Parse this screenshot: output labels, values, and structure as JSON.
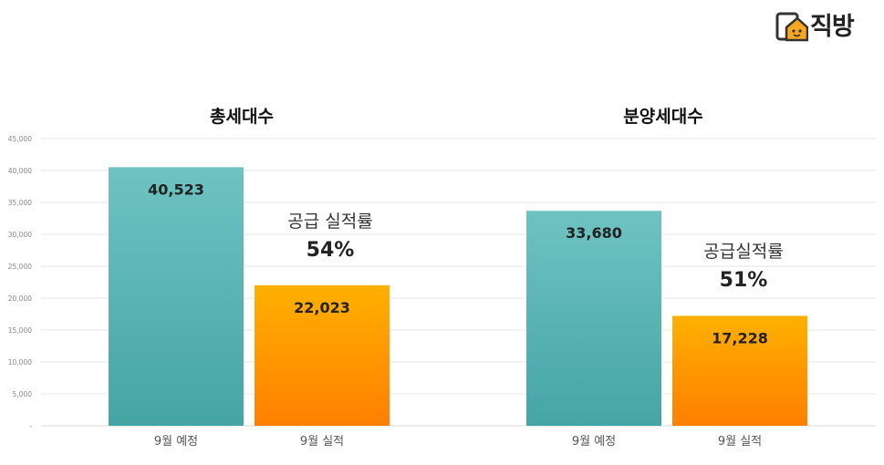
{
  "brand": {
    "name": "직방",
    "icon": "house-logo-icon",
    "accent": "#f7a823"
  },
  "chart_data": {
    "type": "bar",
    "ylim": [
      0,
      45000
    ],
    "yticks": [
      "-",
      "5,000",
      "10,000",
      "15,000",
      "20,000",
      "25,000",
      "30,000",
      "35,000",
      "40,000",
      "45,000"
    ],
    "grid": true,
    "colors": {
      "plan": "#4fb0b0",
      "actual": "#ff9500"
    },
    "panels": [
      {
        "title": "총세대수",
        "categories": [
          "9월 예정",
          "9월 실적"
        ],
        "values": [
          40523,
          22023
        ],
        "value_labels": [
          "40,523",
          "22,023"
        ],
        "annotation": {
          "label": "공급 실적률",
          "value": "54%"
        }
      },
      {
        "title": "분양세대수",
        "categories": [
          "9월 예정",
          "9월 실적"
        ],
        "values": [
          33680,
          17228
        ],
        "value_labels": [
          "33,680",
          "17,228"
        ],
        "annotation": {
          "label": "공급실적률",
          "value": "51%"
        }
      }
    ]
  }
}
